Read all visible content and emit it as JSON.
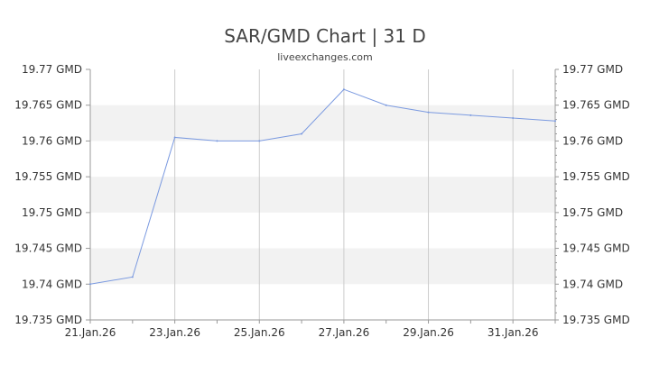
{
  "chart_data": {
    "type": "line",
    "title": "SAR/GMD Chart | 31 D",
    "subtitle": "liveexchanges.com",
    "xlabel": "",
    "ylabel": "",
    "x_tick_labels": [
      "21.Jan.26",
      "23.Jan.26",
      "25.Jan.26",
      "27.Jan.26",
      "29.Jan.26",
      "31.Jan.26"
    ],
    "y_tick_labels": [
      "19.77 GMD",
      "19.765 GMD",
      "19.76 GMD",
      "19.755 GMD",
      "19.75 GMD",
      "19.745 GMD",
      "19.74 GMD",
      "19.735 GMD"
    ],
    "y_ticks": [
      19.77,
      19.765,
      19.76,
      19.755,
      19.75,
      19.745,
      19.74,
      19.735
    ],
    "ylim": [
      19.735,
      19.77
    ],
    "x": [
      "2026-01-21",
      "2026-01-22",
      "2026-01-23",
      "2026-01-24",
      "2026-01-25",
      "2026-01-26",
      "2026-01-27",
      "2026-01-28",
      "2026-01-29",
      "2026-01-30",
      "2026-01-31",
      "2026-02-01"
    ],
    "series": [
      {
        "values": [
          19.74,
          19.741,
          19.7605,
          19.76,
          19.76,
          19.761,
          19.7672,
          19.765,
          19.764,
          19.7636,
          19.7632,
          19.7628
        ]
      }
    ],
    "grid": true,
    "legend": "none",
    "colors": {
      "line": "#7b9ae0",
      "band": "#f2f2f2",
      "gridline": "#cccccc",
      "axis": "#999999"
    }
  }
}
